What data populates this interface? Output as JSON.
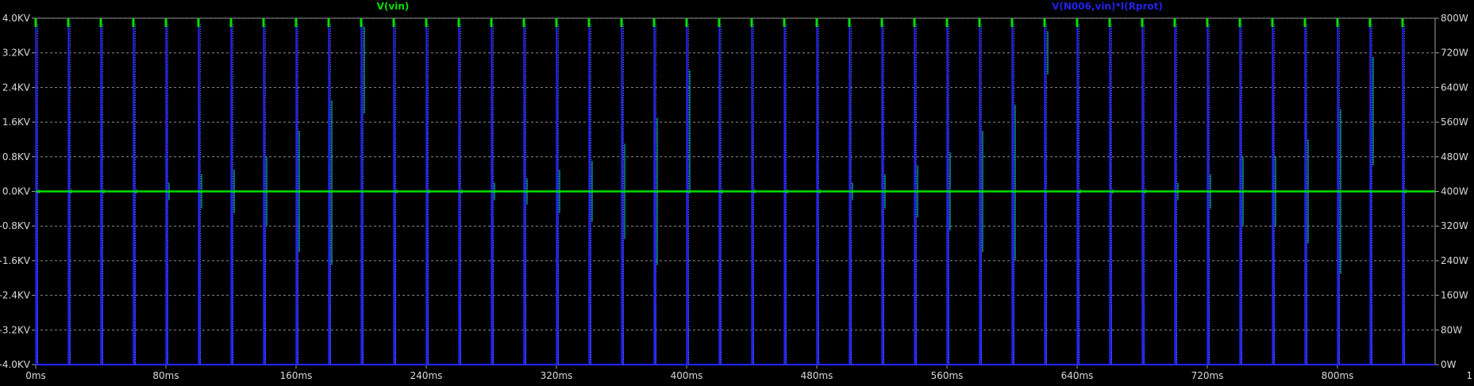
{
  "chart_data": {
    "type": "line",
    "title": "",
    "xlabel": "",
    "xunit": "ms",
    "xlim": [
      0,
      860
    ],
    "x_ticks": [
      0,
      80,
      160,
      240,
      320,
      400,
      480,
      560,
      640,
      720,
      800
    ],
    "x_tick_labels": [
      "0ms",
      "80ms",
      "160ms",
      "240ms",
      "320ms",
      "400ms",
      "480ms",
      "560ms",
      "640ms",
      "720ms",
      "800ms"
    ],
    "x_edge_label": "1",
    "grid": true,
    "background": "#000000",
    "left_axis": {
      "label": "",
      "unit": "KV",
      "ylim": [
        -4.0,
        4.0
      ],
      "ticks": [
        4.0,
        3.2,
        2.4,
        1.6,
        0.8,
        0.0,
        -0.8,
        -1.6,
        -2.4,
        -3.2,
        -4.0
      ],
      "tick_labels": [
        "4.0KV",
        "3.2KV",
        "2.4KV",
        "1.6KV",
        "0.8KV",
        "0.0KV",
        "-0.8KV",
        "-1.6KV",
        "-2.4KV",
        "-3.2KV",
        "-4.0KV"
      ]
    },
    "right_axis": {
      "label": "",
      "unit": "W",
      "ylim": [
        0,
        800
      ],
      "ticks": [
        800,
        720,
        640,
        560,
        480,
        400,
        320,
        240,
        160,
        80,
        0
      ],
      "tick_labels": [
        "800W",
        "720W",
        "640W",
        "560W",
        "480W",
        "400W",
        "320W",
        "240W",
        "160W",
        "80W",
        "0W"
      ]
    },
    "series": [
      {
        "name": "V(vin)",
        "color": "#00e000",
        "axis": "left",
        "baseline": 0.0,
        "pulse_period_ms": 20,
        "pulse_count": 43,
        "pulse_width_ms": 1,
        "pulse_peak": 4.0
      },
      {
        "name": "V(N006,vin)*I(Rprot)",
        "color": "#2222ee",
        "axis": "right",
        "baseline": 0,
        "pulse_period_ms": 20,
        "pulse_count": 43,
        "pulse_offset_ms": 0.2,
        "pulse_peak": 800
      },
      {
        "name": "",
        "color": "#00b0b0",
        "axis": "left",
        "x": [
          0,
          20,
          40,
          60,
          80,
          100,
          120,
          140,
          160,
          180,
          200,
          220,
          240,
          260,
          280,
          300,
          320,
          340,
          360,
          380,
          400,
          420,
          440,
          460,
          480,
          500,
          520,
          540,
          560,
          580,
          600,
          620,
          640,
          660,
          680,
          700,
          720,
          740,
          760,
          780,
          800,
          820,
          840
        ],
        "upper": [
          0.05,
          0.05,
          0.05,
          0.05,
          0.2,
          0.4,
          0.5,
          0.8,
          1.4,
          2.1,
          3.8,
          0.05,
          0.05,
          0.05,
          0.2,
          0.3,
          0.5,
          0.7,
          1.1,
          1.7,
          2.8,
          0.05,
          0.05,
          0.05,
          0.05,
          0.2,
          0.4,
          0.6,
          0.9,
          1.4,
          2.0,
          3.7,
          0.05,
          0.05,
          0.05,
          0.2,
          0.4,
          0.8,
          0.8,
          1.2,
          1.9,
          3.1,
          0.05
        ],
        "lower": [
          -0.05,
          -0.05,
          -0.05,
          -0.05,
          -0.2,
          -0.4,
          -0.5,
          -0.8,
          -1.4,
          -1.7,
          1.8,
          -0.05,
          -0.05,
          -0.05,
          -0.2,
          -0.3,
          -0.5,
          -0.7,
          -1.1,
          -1.7,
          -0.05,
          -0.05,
          -0.05,
          -0.05,
          -0.05,
          -0.2,
          -0.4,
          -0.6,
          -0.9,
          -1.4,
          -1.6,
          2.7,
          -0.05,
          -0.05,
          -0.05,
          -0.2,
          -0.4,
          -0.8,
          -0.8,
          -1.2,
          -1.9,
          0.6,
          -0.05
        ]
      }
    ]
  }
}
